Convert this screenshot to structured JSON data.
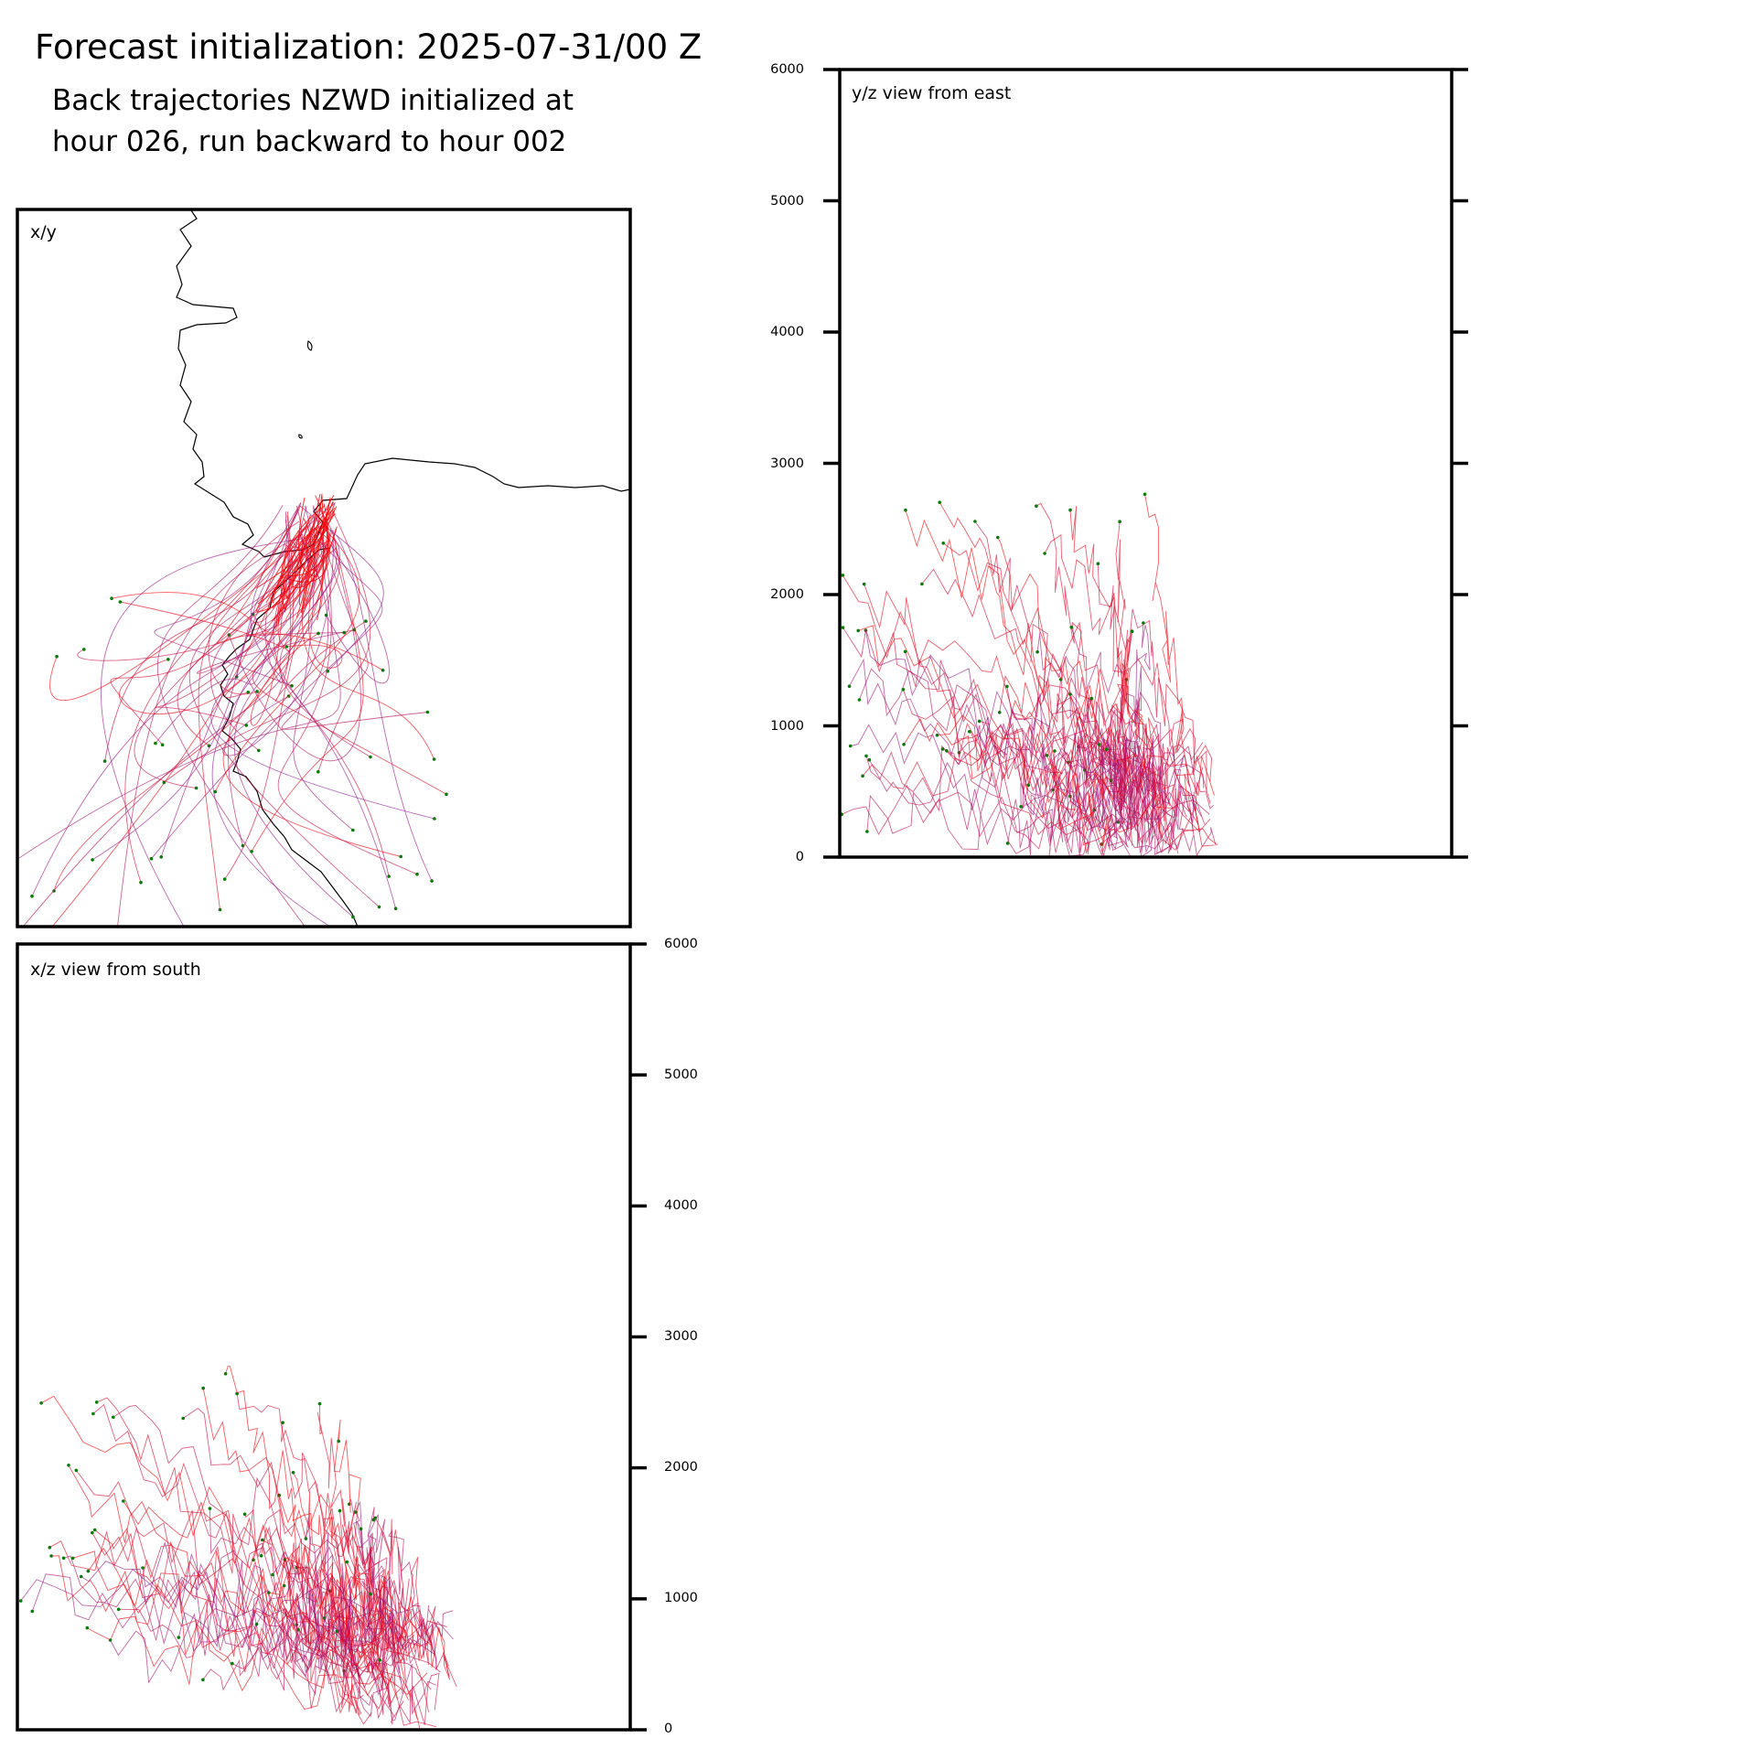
{
  "header": {
    "title": "Forecast initialization: 2025-07-31/00 Z",
    "subtitle_line1": "Back trajectories NZWD initialized at",
    "subtitle_line2": "hour 026, run backward to hour 002"
  },
  "colors": {
    "trajectory_start": "#8b1a96",
    "trajectory_end": "#ff0000",
    "endpoint_marker": "#0a7a0a",
    "coastline": "#000000",
    "frame": "#000000"
  },
  "chart_data": [
    {
      "panel": "xy",
      "type": "line",
      "label": "x/y",
      "xlim": [
        0,
        1
      ],
      "ylim": [
        0,
        1
      ],
      "grid": false,
      "map_background": "coastline",
      "series_count": 60
    },
    {
      "panel": "yz",
      "type": "line",
      "label": "y/z view from east",
      "ylabel": "",
      "ylim": [
        0,
        6000
      ],
      "yticks": [
        "0",
        "1000",
        "2000",
        "3000",
        "4000",
        "5000",
        "6000"
      ],
      "grid": false,
      "series_count": 60
    },
    {
      "panel": "xz",
      "type": "line",
      "label": "x/z view from south",
      "ylabel": "",
      "ylim": [
        0,
        6000
      ],
      "yticks": [
        "0",
        "1000",
        "2000",
        "3000",
        "4000",
        "5000",
        "6000"
      ],
      "grid": false,
      "series_count": 60
    }
  ]
}
